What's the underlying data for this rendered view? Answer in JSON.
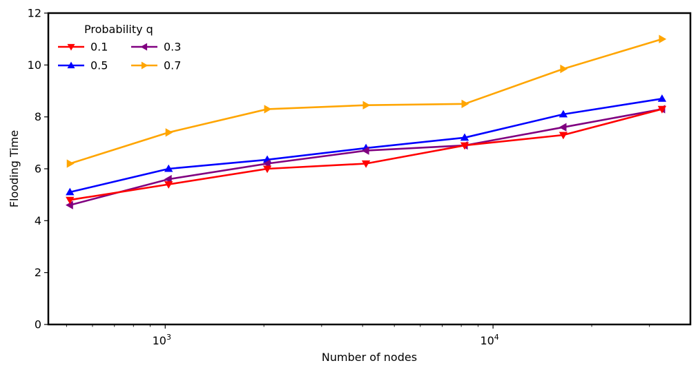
{
  "chart_data": {
    "type": "line",
    "xscale": "log",
    "x": [
      512,
      1024,
      2048,
      4096,
      8192,
      16384,
      32768
    ],
    "xlim": [
      440,
      40000
    ],
    "ylim": [
      0,
      12
    ],
    "yticks": [
      0,
      2,
      4,
      6,
      8,
      10,
      12
    ],
    "xticks": [
      {
        "value": 1000,
        "base": "10",
        "exp": "3"
      },
      {
        "value": 10000,
        "base": "10",
        "exp": "4"
      }
    ],
    "xlabel": "Number of nodes",
    "ylabel": "Flooding Time",
    "legend": {
      "title": "Probability q",
      "position": "top-left",
      "columns": 2
    },
    "grid": false,
    "series": [
      {
        "name": "0.1",
        "color": "#ff0000",
        "marker": "triangle-down",
        "values": [
          4.8,
          5.4,
          6.0,
          6.2,
          6.9,
          7.3,
          8.3
        ]
      },
      {
        "name": "0.3",
        "color": "#800080",
        "marker": "triangle-left",
        "values": [
          4.6,
          5.6,
          6.2,
          6.7,
          6.9,
          7.6,
          8.3
        ]
      },
      {
        "name": "0.5",
        "color": "#0000ff",
        "marker": "triangle-up",
        "values": [
          5.1,
          6.0,
          6.35,
          6.8,
          7.2,
          8.1,
          8.7
        ]
      },
      {
        "name": "0.7",
        "color": "#ffa500",
        "marker": "triangle-right",
        "values": [
          6.2,
          7.4,
          8.3,
          8.45,
          8.5,
          9.85,
          11.0
        ]
      }
    ]
  }
}
